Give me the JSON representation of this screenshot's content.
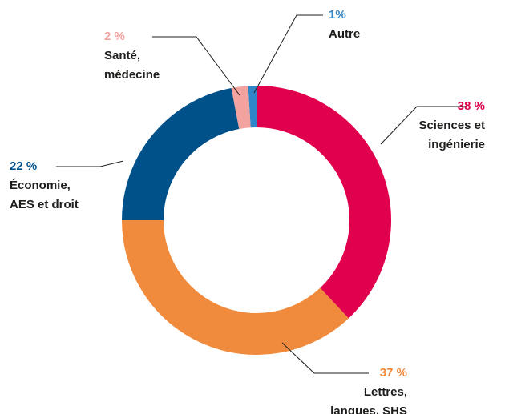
{
  "chart_data": {
    "type": "donut",
    "categories": [
      [
        "Sciences et",
        "ingénierie"
      ],
      [
        "Lettres,",
        "langues, SHS"
      ],
      [
        "Économie,",
        "AES et droit"
      ],
      [
        "Santé,",
        "médecine"
      ],
      [
        "Autre"
      ]
    ],
    "values": [
      38,
      37,
      22,
      2,
      1
    ],
    "value_labels": [
      "38 %",
      "37 %",
      "22 %",
      "2 %",
      "1%"
    ],
    "colors": [
      "#e0004d",
      "#f08a3c",
      "#00508a",
      "#f2a3a0",
      "#2f86c9"
    ]
  }
}
